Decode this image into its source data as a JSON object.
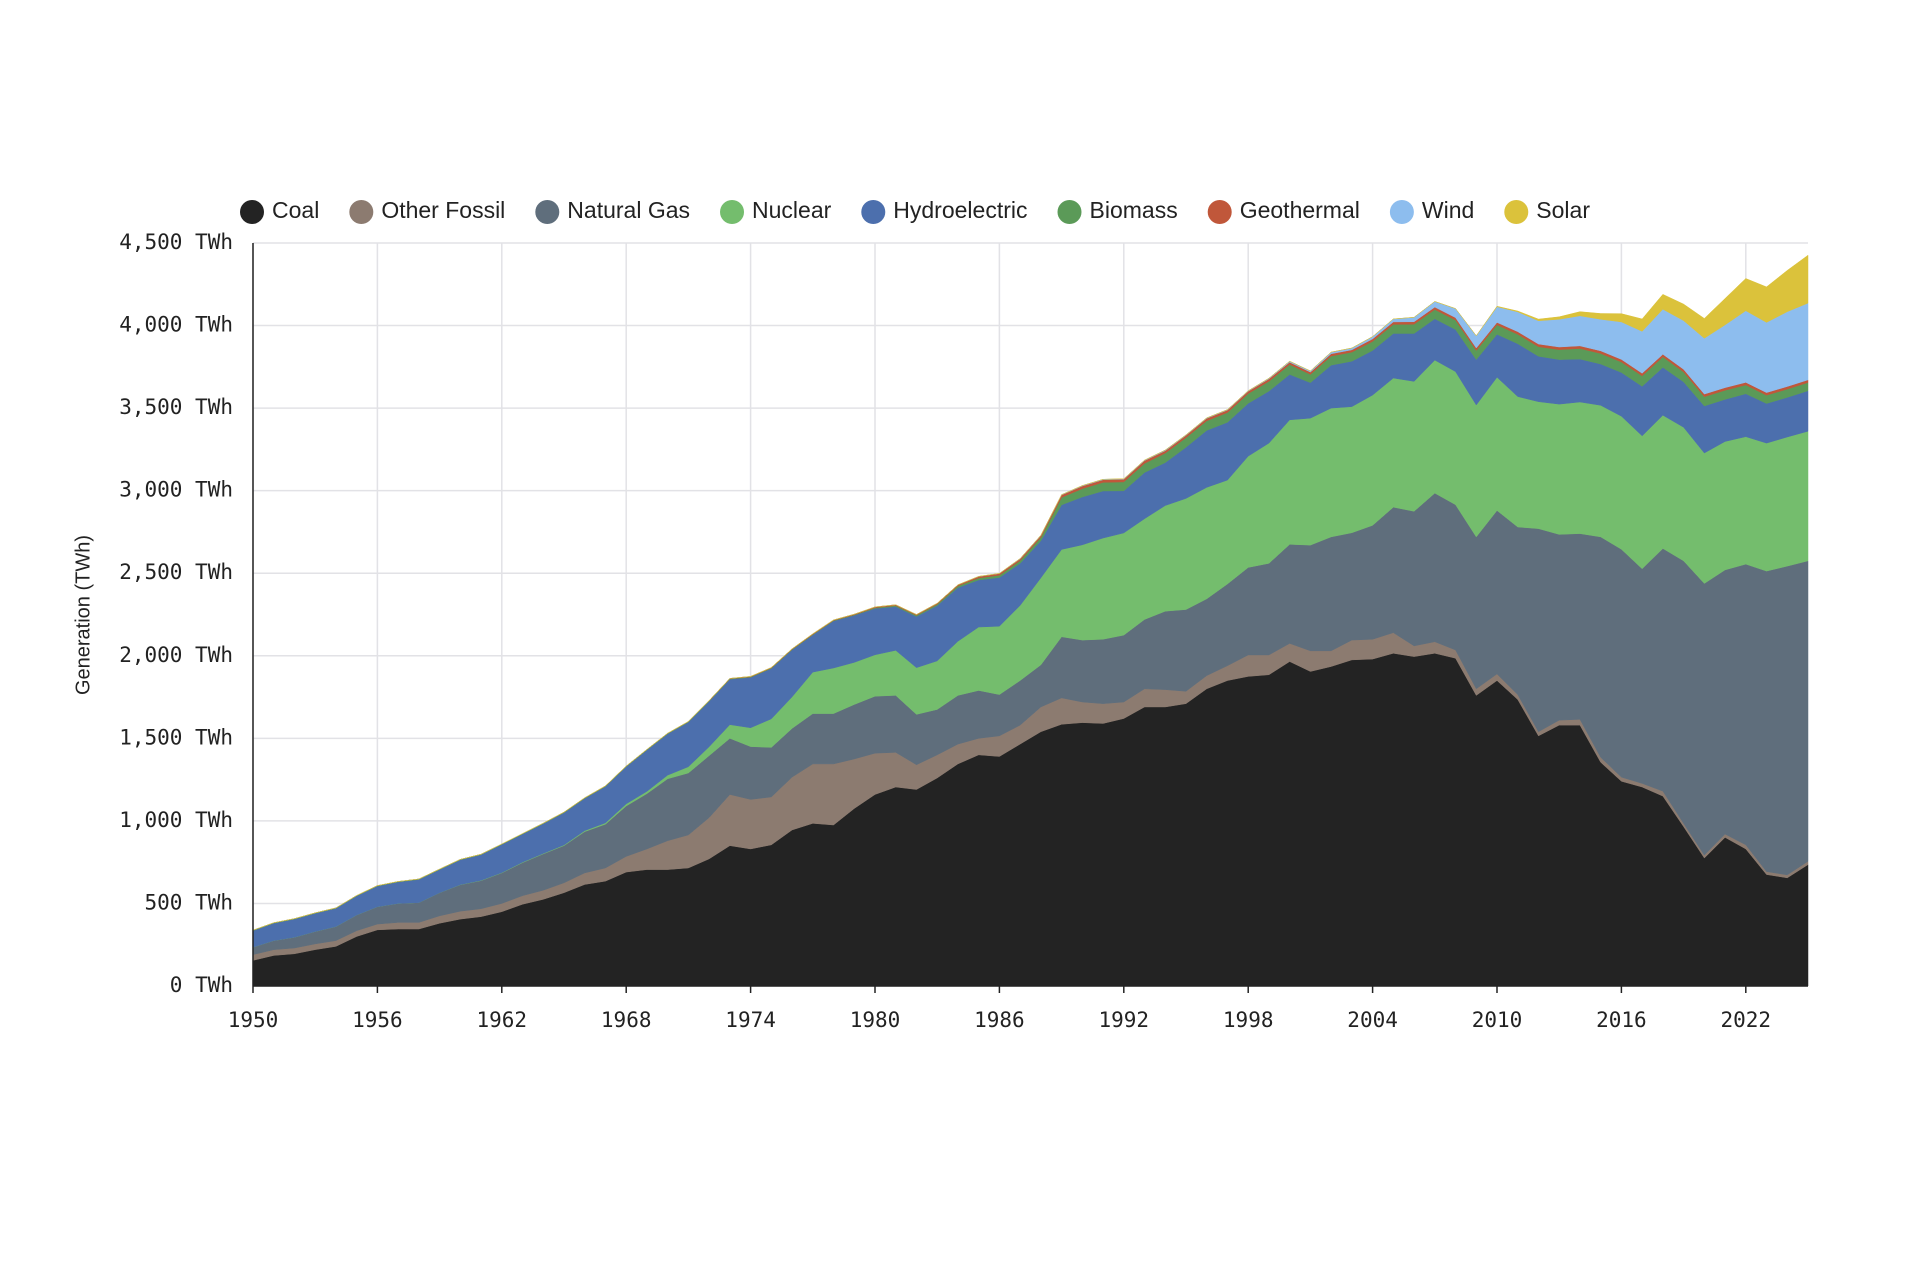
{
  "chart_data": {
    "type": "stacked_area",
    "y_label": "Generation (TWh)",
    "x": [
      1950,
      1951,
      1952,
      1953,
      1954,
      1955,
      1956,
      1957,
      1958,
      1959,
      1960,
      1961,
      1962,
      1963,
      1964,
      1965,
      1966,
      1967,
      1968,
      1969,
      1970,
      1971,
      1972,
      1973,
      1974,
      1975,
      1976,
      1977,
      1978,
      1979,
      1980,
      1981,
      1982,
      1983,
      1984,
      1985,
      1986,
      1987,
      1988,
      1989,
      1990,
      1991,
      1992,
      1993,
      1994,
      1995,
      1996,
      1997,
      1998,
      1999,
      2000,
      2001,
      2002,
      2003,
      2004,
      2005,
      2006,
      2007,
      2008,
      2009,
      2010,
      2011,
      2012,
      2013,
      2014,
      2015,
      2016,
      2017,
      2018,
      2019,
      2020,
      2021,
      2022,
      2023,
      2024,
      2025
    ],
    "xlim": [
      1950,
      2025
    ],
    "xticks": [
      1950,
      1956,
      1962,
      1968,
      1974,
      1980,
      1986,
      1992,
      1998,
      2004,
      2010,
      2016,
      2022
    ],
    "ylim": [
      0,
      4500
    ],
    "yticks": [
      {
        "value": 0,
        "label": "0 TWh"
      },
      {
        "value": 500,
        "label": "500 TWh"
      },
      {
        "value": 1000,
        "label": "1,000 TWh"
      },
      {
        "value": 1500,
        "label": "1,500 TWh"
      },
      {
        "value": 2000,
        "label": "2,000 TWh"
      },
      {
        "value": 2500,
        "label": "2,500 TWh"
      },
      {
        "value": 3000,
        "label": "3,000 TWh"
      },
      {
        "value": 3500,
        "label": "3,500 TWh"
      },
      {
        "value": 4000,
        "label": "4,000 TWh"
      },
      {
        "value": 4500,
        "label": "4,500 TWh"
      }
    ],
    "grid": true,
    "legend": "top",
    "series": [
      {
        "name": "Coal",
        "color": "#232323",
        "values": [
          155,
          185,
          195,
          220,
          240,
          300,
          340,
          345,
          345,
          380,
          405,
          420,
          450,
          495,
          525,
          565,
          615,
          635,
          690,
          705,
          705,
          715,
          770,
          850,
          830,
          855,
          945,
          985,
          975,
          1075,
          1160,
          1205,
          1190,
          1260,
          1345,
          1400,
          1390,
          1465,
          1540,
          1585,
          1595,
          1590,
          1620,
          1690,
          1690,
          1710,
          1800,
          1850,
          1875,
          1885,
          1965,
          1905,
          1935,
          1975,
          1980,
          2015,
          1995,
          2015,
          1985,
          1760,
          1850,
          1735,
          1515,
          1580,
          1580,
          1355,
          1240,
          1205,
          1150,
          965,
          775,
          900,
          830,
          675,
          655,
          735
        ]
      },
      {
        "name": "Other Fossil",
        "color": "#8c7b70",
        "values": [
          35,
          35,
          35,
          35,
          35,
          35,
          35,
          40,
          40,
          45,
          48,
          48,
          50,
          52,
          55,
          60,
          70,
          80,
          95,
          125,
          175,
          200,
          250,
          310,
          300,
          290,
          320,
          360,
          370,
          300,
          250,
          210,
          150,
          140,
          120,
          100,
          125,
          115,
          150,
          160,
          125,
          120,
          100,
          110,
          105,
          75,
          80,
          90,
          130,
          120,
          110,
          125,
          95,
          120,
          120,
          125,
          65,
          70,
          50,
          40,
          40,
          30,
          25,
          30,
          35,
          30,
          25,
          22,
          30,
          20,
          18,
          20,
          25,
          18,
          18,
          20
        ]
      },
      {
        "name": "Natural Gas",
        "color": "#5f6e7c",
        "values": [
          45,
          55,
          65,
          75,
          85,
          95,
          105,
          115,
          120,
          140,
          160,
          170,
          185,
          200,
          220,
          225,
          250,
          265,
          305,
          335,
          375,
          375,
          375,
          340,
          320,
          300,
          295,
          305,
          305,
          330,
          345,
          345,
          305,
          275,
          295,
          290,
          250,
          270,
          255,
          370,
          375,
          390,
          405,
          420,
          475,
          495,
          465,
          495,
          530,
          555,
          600,
          640,
          690,
          650,
          690,
          760,
          815,
          900,
          880,
          920,
          990,
          1015,
          1230,
          1125,
          1125,
          1335,
          1380,
          1300,
          1470,
          1590,
          1645,
          1600,
          1700,
          1820,
          1870,
          1820
        ]
      },
      {
        "name": "Nuclear",
        "color": "#74bd6d",
        "values": [
          0,
          0,
          0,
          0,
          0,
          0,
          0,
          0,
          0,
          0,
          1,
          2,
          2,
          3,
          3,
          4,
          6,
          8,
          13,
          14,
          22,
          38,
          54,
          83,
          114,
          173,
          191,
          251,
          276,
          255,
          251,
          273,
          283,
          294,
          328,
          384,
          414,
          455,
          527,
          529,
          577,
          613,
          619,
          610,
          640,
          673,
          675,
          629,
          674,
          728,
          754,
          769,
          780,
          764,
          789,
          782,
          787,
          806,
          806,
          799,
          807,
          790,
          769,
          789,
          797,
          797,
          806,
          805,
          807,
          809,
          790,
          778,
          772,
          775,
          782,
          785
        ]
      },
      {
        "name": "Hydroelectric",
        "color": "#4c6fad",
        "values": [
          100,
          105,
          110,
          110,
          110,
          115,
          125,
          130,
          140,
          140,
          150,
          155,
          170,
          170,
          180,
          195,
          195,
          220,
          225,
          250,
          250,
          270,
          275,
          275,
          305,
          305,
          285,
          225,
          285,
          285,
          280,
          265,
          310,
          335,
          325,
          285,
          295,
          255,
          225,
          270,
          290,
          285,
          255,
          280,
          260,
          310,
          345,
          350,
          320,
          315,
          275,
          215,
          260,
          275,
          270,
          270,
          290,
          250,
          255,
          275,
          260,
          320,
          275,
          270,
          260,
          250,
          265,
          300,
          290,
          275,
          285,
          255,
          260,
          240,
          240,
          245
        ]
      },
      {
        "name": "Biomass",
        "color": "#5b9a58",
        "values": [
          3,
          3,
          3,
          3,
          3,
          3,
          3,
          3,
          3,
          3,
          3,
          3,
          3,
          3,
          3,
          3,
          3,
          3,
          3,
          3,
          3,
          3,
          3,
          3,
          3,
          3,
          3,
          3,
          3,
          3,
          5,
          6,
          7,
          8,
          10,
          12,
          14,
          16,
          20,
          45,
          50,
          52,
          54,
          55,
          57,
          58,
          58,
          59,
          59,
          59,
          60,
          50,
          55,
          55,
          55,
          55,
          56,
          56,
          57,
          55,
          57,
          57,
          58,
          60,
          64,
          64,
          63,
          63,
          63,
          60,
          56,
          55,
          53,
          50,
          50,
          50
        ]
      },
      {
        "name": "Geothermal",
        "color": "#c0573a",
        "values": [
          0,
          0,
          0,
          0,
          0,
          0,
          0,
          0,
          0,
          0,
          0,
          0,
          0,
          0,
          0,
          1,
          1,
          1,
          1,
          1,
          1,
          1,
          2,
          2,
          3,
          3,
          3,
          4,
          3,
          4,
          5,
          5,
          5,
          6,
          7,
          9,
          10,
          11,
          11,
          15,
          16,
          16,
          16,
          17,
          15,
          14,
          15,
          15,
          14,
          15,
          14,
          14,
          14,
          14,
          15,
          15,
          15,
          15,
          15,
          15,
          15,
          16,
          16,
          16,
          16,
          16,
          16,
          16,
          16,
          16,
          16,
          16,
          16,
          16,
          16,
          16
        ]
      },
      {
        "name": "Wind",
        "color": "#8dbdee",
        "values": [
          0,
          0,
          0,
          0,
          0,
          0,
          0,
          0,
          0,
          0,
          0,
          0,
          0,
          0,
          0,
          0,
          0,
          0,
          0,
          0,
          0,
          0,
          0,
          0,
          0,
          0,
          0,
          0,
          0,
          0,
          0,
          0,
          0,
          0,
          0,
          1,
          1,
          2,
          2,
          2,
          3,
          3,
          3,
          3,
          4,
          3,
          3,
          3,
          3,
          4,
          6,
          7,
          10,
          11,
          14,
          18,
          27,
          34,
          55,
          74,
          95,
          120,
          141,
          168,
          182,
          191,
          227,
          254,
          273,
          295,
          338,
          380,
          434,
          425,
          453,
          465
        ]
      },
      {
        "name": "Solar",
        "color": "#dbc23b",
        "values": [
          0,
          0,
          0,
          0,
          0,
          0,
          0,
          0,
          0,
          0,
          0,
          0,
          0,
          0,
          0,
          0,
          0,
          0,
          0,
          0,
          0,
          0,
          0,
          0,
          0,
          0,
          0,
          0,
          0,
          0,
          0,
          0,
          0,
          0,
          0,
          0,
          0,
          0,
          0,
          0,
          0,
          0,
          0,
          0,
          0,
          0,
          0,
          0,
          0,
          0,
          0,
          0,
          0,
          0,
          0,
          0,
          0,
          0,
          0,
          0,
          3,
          5,
          10,
          15,
          25,
          35,
          50,
          75,
          90,
          100,
          120,
          160,
          195,
          215,
          250,
          290
        ]
      }
    ]
  }
}
